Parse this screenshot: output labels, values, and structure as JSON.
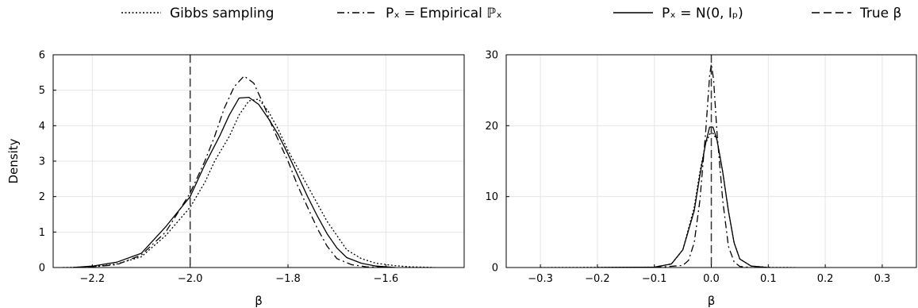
{
  "legend": {
    "placement": "top",
    "entries": [
      {
        "label": "Gibbs sampling",
        "style": "dotted"
      },
      {
        "label": "Pₓ = Empirical ℙₓ",
        "style": "dashdot"
      },
      {
        "label": "Pₓ = N(0, Iₚ)",
        "style": "solid"
      },
      {
        "label": "True β",
        "style": "dashed"
      }
    ]
  },
  "colors": {
    "line": "#000000",
    "grid": "#e6e6e6",
    "frame": "#000000"
  },
  "chart_data": [
    {
      "type": "line",
      "xlabel": "β",
      "ylabel": "Density",
      "xlim": [
        -2.28,
        -1.44
      ],
      "ylim": [
        0,
        6
      ],
      "xticks": [
        -2.2,
        -2.0,
        -1.8,
        -1.6
      ],
      "xtick_labels": [
        "−2.2",
        "−2.0",
        "−1.8",
        "−1.6"
      ],
      "yticks": [
        0,
        1,
        2,
        3,
        4,
        5,
        6
      ],
      "ytick_labels": [
        "0",
        "1",
        "2",
        "3",
        "4",
        "5",
        "6"
      ],
      "grid": true,
      "vline": {
        "x": -2.0,
        "series": "True β"
      },
      "series": [
        {
          "name": "Gibbs sampling",
          "style": "dotted",
          "points": [
            [
              -2.26,
              0
            ],
            [
              -2.2,
              0.02
            ],
            [
              -2.15,
              0.1
            ],
            [
              -2.1,
              0.3
            ],
            [
              -2.05,
              0.9
            ],
            [
              -2.0,
              1.7
            ],
            [
              -1.97,
              2.4
            ],
            [
              -1.95,
              3.0
            ],
            [
              -1.92,
              3.7
            ],
            [
              -1.9,
              4.3
            ],
            [
              -1.88,
              4.7
            ],
            [
              -1.86,
              4.75
            ],
            [
              -1.84,
              4.4
            ],
            [
              -1.82,
              3.9
            ],
            [
              -1.8,
              3.3
            ],
            [
              -1.78,
              2.8
            ],
            [
              -1.76,
              2.3
            ],
            [
              -1.74,
              1.8
            ],
            [
              -1.72,
              1.3
            ],
            [
              -1.7,
              0.9
            ],
            [
              -1.68,
              0.5
            ],
            [
              -1.65,
              0.25
            ],
            [
              -1.62,
              0.12
            ],
            [
              -1.58,
              0.05
            ],
            [
              -1.55,
              0.02
            ],
            [
              -1.5,
              0
            ]
          ]
        },
        {
          "name": "Pₓ = Empirical ℙₓ",
          "style": "dashdot",
          "points": [
            [
              -2.24,
              0
            ],
            [
              -2.2,
              0.02
            ],
            [
              -2.15,
              0.08
            ],
            [
              -2.1,
              0.35
            ],
            [
              -2.05,
              1.0
            ],
            [
              -2.0,
              2.1
            ],
            [
              -1.97,
              3.0
            ],
            [
              -1.95,
              3.7
            ],
            [
              -1.93,
              4.5
            ],
            [
              -1.91,
              5.1
            ],
            [
              -1.89,
              5.4
            ],
            [
              -1.87,
              5.2
            ],
            [
              -1.85,
              4.6
            ],
            [
              -1.83,
              3.9
            ],
            [
              -1.8,
              3.0
            ],
            [
              -1.78,
              2.3
            ],
            [
              -1.76,
              1.7
            ],
            [
              -1.74,
              1.1
            ],
            [
              -1.72,
              0.6
            ],
            [
              -1.7,
              0.25
            ],
            [
              -1.67,
              0.08
            ],
            [
              -1.64,
              0.02
            ],
            [
              -1.6,
              0
            ]
          ]
        },
        {
          "name": "Pₓ = N(0, Iₚ)",
          "style": "solid",
          "points": [
            [
              -2.24,
              0
            ],
            [
              -2.2,
              0.04
            ],
            [
              -2.15,
              0.15
            ],
            [
              -2.1,
              0.4
            ],
            [
              -2.05,
              1.15
            ],
            [
              -2.0,
              2.0
            ],
            [
              -1.97,
              2.9
            ],
            [
              -1.94,
              3.7
            ],
            [
              -1.92,
              4.3
            ],
            [
              -1.9,
              4.78
            ],
            [
              -1.88,
              4.8
            ],
            [
              -1.86,
              4.6
            ],
            [
              -1.84,
              4.2
            ],
            [
              -1.82,
              3.75
            ],
            [
              -1.8,
              3.2
            ],
            [
              -1.78,
              2.6
            ],
            [
              -1.76,
              2.0
            ],
            [
              -1.74,
              1.45
            ],
            [
              -1.72,
              0.95
            ],
            [
              -1.7,
              0.55
            ],
            [
              -1.68,
              0.28
            ],
            [
              -1.65,
              0.12
            ],
            [
              -1.62,
              0.04
            ],
            [
              -1.58,
              0
            ]
          ]
        }
      ]
    },
    {
      "type": "line",
      "xlabel": "β",
      "ylabel": "",
      "xlim": [
        -0.36,
        0.36
      ],
      "ylim": [
        0,
        30
      ],
      "xticks": [
        -0.3,
        -0.2,
        -0.1,
        0.0,
        0.1,
        0.2,
        0.3
      ],
      "xtick_labels": [
        "−0.3",
        "−0.2",
        "−0.1",
        "0.0",
        "0.1",
        "0.2",
        "0.3"
      ],
      "yticks": [
        0,
        10,
        20,
        30
      ],
      "ytick_labels": [
        "0",
        "10",
        "20",
        "30"
      ],
      "grid": true,
      "vline": {
        "x": 0.0,
        "series": "True β"
      },
      "series": [
        {
          "name": "Gibbs sampling",
          "style": "dotted",
          "points": [
            [
              -0.3,
              0
            ],
            [
              -0.1,
              0.05
            ],
            [
              -0.07,
              0.5
            ],
            [
              -0.05,
              2.5
            ],
            [
              -0.03,
              8.5
            ],
            [
              -0.02,
              13.5
            ],
            [
              -0.01,
              17.5
            ],
            [
              0.0,
              19.3
            ],
            [
              0.01,
              18.0
            ],
            [
              0.02,
              13.5
            ],
            [
              0.03,
              8.0
            ],
            [
              0.04,
              3.5
            ],
            [
              0.05,
              1.2
            ],
            [
              0.07,
              0.2
            ],
            [
              0.1,
              0.02
            ],
            [
              0.15,
              0
            ]
          ]
        },
        {
          "name": "Pₓ = Empirical ℙₓ",
          "style": "dashdot",
          "points": [
            [
              -0.1,
              0
            ],
            [
              -0.05,
              0.3
            ],
            [
              -0.04,
              1.0
            ],
            [
              -0.03,
              3.5
            ],
            [
              -0.02,
              9.5
            ],
            [
              -0.01,
              19.0
            ],
            [
              -0.003,
              27.0
            ],
            [
              0.0,
              28.7
            ],
            [
              0.004,
              26.5
            ],
            [
              0.01,
              19.0
            ],
            [
              0.02,
              9.5
            ],
            [
              0.03,
              3.0
            ],
            [
              0.04,
              0.8
            ],
            [
              0.05,
              0.15
            ],
            [
              0.07,
              0
            ]
          ]
        },
        {
          "name": "Pₓ = N(0, Iₚ)",
          "style": "solid",
          "points": [
            [
              -0.2,
              0
            ],
            [
              -0.1,
              0.05
            ],
            [
              -0.07,
              0.5
            ],
            [
              -0.05,
              2.5
            ],
            [
              -0.03,
              8.0
            ],
            [
              -0.02,
              13.0
            ],
            [
              -0.01,
              17.5
            ],
            [
              -0.003,
              19.8
            ],
            [
              0.003,
              19.8
            ],
            [
              0.01,
              18.0
            ],
            [
              0.02,
              13.5
            ],
            [
              0.03,
              8.0
            ],
            [
              0.04,
              3.5
            ],
            [
              0.05,
              1.2
            ],
            [
              0.07,
              0.2
            ],
            [
              0.1,
              0
            ]
          ]
        }
      ]
    }
  ]
}
